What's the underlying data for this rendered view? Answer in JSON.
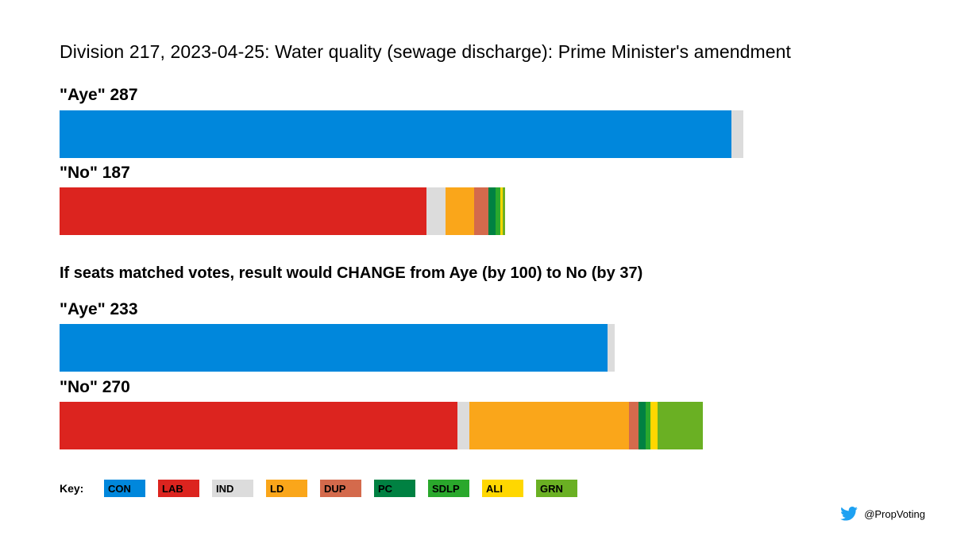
{
  "colors": {
    "CON": "#0087DC",
    "LAB": "#DC241F",
    "IND": "#DCDCDC",
    "LD": "#FAA61A",
    "DUP": "#D46A4C",
    "PC": "#008142",
    "SDLP": "#2AA82C",
    "ALI": "#FFD700",
    "GRN": "#6AB023"
  },
  "twitter": {
    "icon": "twitter-bird-icon",
    "handle": "@PropVoting"
  },
  "chart_data": {
    "type": "bar",
    "orientation": "horizontal-stacked",
    "title": "Division 217, 2023-04-25: Water quality (sewage discharge): Prime Minister's amendment",
    "subtitle": "If seats matched votes, result would CHANGE from Aye (by 100) to No (by 37)",
    "parties": [
      "CON",
      "LAB",
      "IND",
      "LD",
      "DUP",
      "PC",
      "SDLP",
      "ALI",
      "GRN"
    ],
    "key_label": "Key:",
    "panels": [
      {
        "name": "actual",
        "bars": [
          {
            "label": "\"Aye\" 287",
            "total": 287,
            "segments": [
              {
                "party": "CON",
                "value": 282
              },
              {
                "party": "IND",
                "value": 5
              }
            ]
          },
          {
            "label": "\"No\" 187",
            "total": 187,
            "segments": [
              {
                "party": "LAB",
                "value": 154
              },
              {
                "party": "IND",
                "value": 8
              },
              {
                "party": "LD",
                "value": 12
              },
              {
                "party": "DUP",
                "value": 6
              },
              {
                "party": "PC",
                "value": 3
              },
              {
                "party": "SDLP",
                "value": 2
              },
              {
                "party": "ALI",
                "value": 1
              },
              {
                "party": "GRN",
                "value": 1
              }
            ]
          }
        ]
      },
      {
        "name": "proportional",
        "bars": [
          {
            "label": "\"Aye\" 233",
            "total": 233,
            "segments": [
              {
                "party": "CON",
                "value": 230
              },
              {
                "party": "IND",
                "value": 3
              }
            ]
          },
          {
            "label": "\"No\" 270",
            "total": 270,
            "segments": [
              {
                "party": "LAB",
                "value": 167
              },
              {
                "party": "IND",
                "value": 5
              },
              {
                "party": "LD",
                "value": 67
              },
              {
                "party": "DUP",
                "value": 4
              },
              {
                "party": "PC",
                "value": 3
              },
              {
                "party": "SDLP",
                "value": 2
              },
              {
                "party": "ALI",
                "value": 3
              },
              {
                "party": "GRN",
                "value": 19
              }
            ]
          }
        ]
      }
    ],
    "xlim": [
      0,
      287
    ]
  }
}
